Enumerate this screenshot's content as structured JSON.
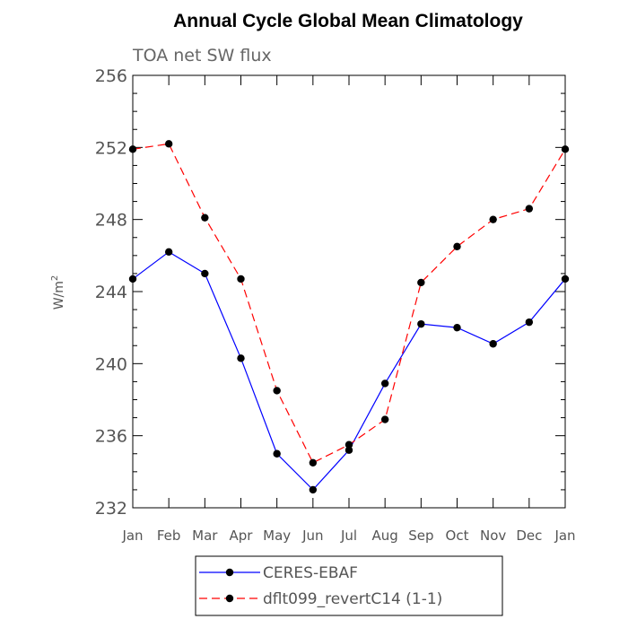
{
  "chart_data": {
    "type": "line",
    "title": "Annual Cycle Global Mean Climatology",
    "subtitle": "TOA net SW flux",
    "xlabel": "",
    "ylabel_base": "W/m",
    "ylabel_sup": "2",
    "categories": [
      "Jan",
      "Feb",
      "Mar",
      "Apr",
      "May",
      "Jun",
      "Jul",
      "Aug",
      "Sep",
      "Oct",
      "Nov",
      "Dec",
      "Jan"
    ],
    "ylim": [
      232,
      256
    ],
    "yticks": [
      232,
      236,
      240,
      244,
      248,
      252,
      256
    ],
    "series": [
      {
        "name": "CERES-EBAF",
        "color": "#0000ff",
        "dash": "solid",
        "values": [
          244.7,
          246.2,
          245.0,
          240.3,
          235.0,
          233.0,
          235.2,
          238.9,
          242.2,
          242.0,
          241.1,
          242.3,
          244.7
        ]
      },
      {
        "name": "dflt099_revertC14 (1-1)",
        "color": "#ff0000",
        "dash": "dashed",
        "values": [
          251.9,
          252.2,
          248.1,
          244.7,
          238.5,
          234.5,
          235.5,
          236.9,
          244.5,
          246.5,
          248.0,
          248.6,
          251.9
        ]
      }
    ],
    "legend_position": "bottom-left"
  }
}
